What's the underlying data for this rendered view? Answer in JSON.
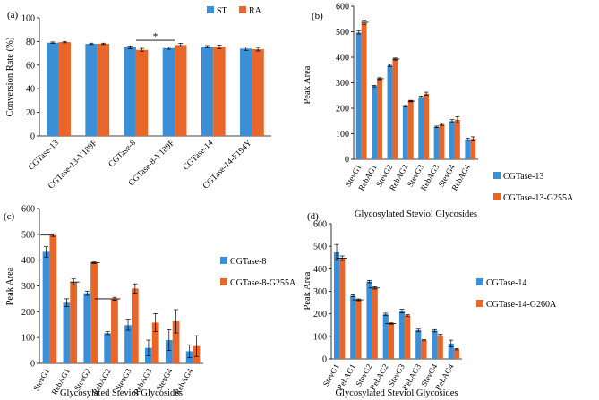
{
  "colors": {
    "blue": "#3A8FD6",
    "orange": "#E8662A"
  },
  "chart_data": [
    {
      "panel_label": "(a)",
      "type": "bar",
      "title": "",
      "xlabel": "",
      "ylabel": "Conversion Rate (%)",
      "ylim": [
        0,
        100
      ],
      "yticks": [
        0,
        20,
        40,
        60,
        80,
        100
      ],
      "categories": [
        "CGTase-13",
        "CGTase-13-Y189F",
        "CGTase-8",
        "CGTase-8-Y189F",
        "CGTase-14",
        "CGTase-14-F194Y"
      ],
      "series": [
        {
          "name": "ST",
          "color": "blue",
          "values": [
            79,
            78,
            75,
            74.5,
            75.5,
            74
          ],
          "errors": [
            0.6,
            0.6,
            1.2,
            1.0,
            1.0,
            1.5
          ]
        },
        {
          "name": "RA",
          "color": "orange",
          "values": [
            79.5,
            78,
            73,
            77,
            75.5,
            73.5
          ],
          "errors": [
            0.6,
            0.6,
            1.2,
            1.5,
            1.5,
            1.5
          ]
        }
      ],
      "legend_position": "top-right",
      "annotations": [
        {
          "text": "*",
          "category_from": 2,
          "category_to": 3,
          "y": 81
        }
      ]
    },
    {
      "panel_label": "(b)",
      "type": "bar",
      "title": "",
      "xlabel": "Glycosylated Steviol Glycosides",
      "ylabel": "Peak Area",
      "ylim": [
        0,
        600
      ],
      "yticks": [
        0,
        100,
        200,
        300,
        400,
        500,
        600
      ],
      "categories": [
        "StevG1",
        "RebAG1",
        "StevG2",
        "RebAG2",
        "StevG3",
        "RebAG3",
        "StevG4",
        "RebAG4"
      ],
      "series": [
        {
          "name": "CGTase-13",
          "color": "blue",
          "values": [
            497,
            287,
            368,
            208,
            244,
            127,
            150,
            78
          ],
          "errors": [
            6,
            3,
            4,
            3,
            4,
            3,
            6,
            4
          ]
        },
        {
          "name": "CGTase-13-G255A",
          "color": "orange",
          "values": [
            537,
            316,
            393,
            228,
            257,
            137,
            155,
            80
          ],
          "errors": [
            8,
            4,
            4,
            3,
            6,
            4,
            12,
            8
          ]
        }
      ],
      "legend_position": "right",
      "reference_lines": [
        {
          "y": 537,
          "category_from": 0,
          "category_to": 0.45
        },
        {
          "y": 316,
          "category_from": 1,
          "category_to": 1.45
        },
        {
          "y": 393,
          "category_from": 2,
          "category_to": 2.45
        },
        {
          "y": 228,
          "category_from": 3,
          "category_to": 3.45
        }
      ]
    },
    {
      "panel_label": "(c)",
      "type": "bar",
      "title": "",
      "xlabel": "Glycosylated Steviol Glycosides",
      "ylabel": "Peak Area",
      "ylim": [
        0,
        600
      ],
      "yticks": [
        0,
        100,
        200,
        300,
        400,
        500,
        600
      ],
      "categories": [
        "StevG1",
        "RebAG1",
        "StevG2",
        "RebAG2",
        "StevG3",
        "RebAG3",
        "StevG4",
        "RebAG4"
      ],
      "series": [
        {
          "name": "CGTase-8",
          "color": "blue",
          "values": [
            432,
            235,
            272,
            117,
            148,
            60,
            90,
            47
          ],
          "errors": [
            20,
            15,
            8,
            6,
            20,
            30,
            40,
            25
          ]
        },
        {
          "name": "CGTase-8-G255A",
          "color": "orange",
          "values": [
            497,
            315,
            390,
            250,
            290,
            158,
            163,
            67
          ],
          "errors": [
            5,
            12,
            3,
            6,
            18,
            35,
            45,
            40
          ]
        }
      ],
      "legend_position": "right",
      "reference_lines": [
        {
          "y": 497,
          "category_from": -0.45,
          "category_to": 0.2
        },
        {
          "y": 315,
          "category_from": 1,
          "category_to": 1.45
        },
        {
          "y": 390,
          "category_from": 2,
          "category_to": 2.45
        },
        {
          "y": 250,
          "category_from": 2.2,
          "category_to": 3.45
        }
      ]
    },
    {
      "panel_label": "(d)",
      "type": "bar",
      "title": "",
      "xlabel": "Glycosylated Steviol Glycosides",
      "ylabel": "Peak Area",
      "ylim": [
        0,
        600
      ],
      "yticks": [
        0,
        100,
        200,
        300,
        400,
        500,
        600
      ],
      "categories": [
        "StevG1",
        "RebAG1",
        "StevG2",
        "RebAG2",
        "StevG3",
        "RebAG3",
        "StevG4",
        "RebAG4"
      ],
      "series": [
        {
          "name": "CGTase-14",
          "color": "blue",
          "values": [
            473,
            280,
            343,
            198,
            212,
            127,
            125,
            68
          ],
          "errors": [
            35,
            4,
            5,
            5,
            8,
            5,
            5,
            15
          ]
        },
        {
          "name": "CGTase-14-G260A",
          "color": "orange",
          "values": [
            447,
            262,
            315,
            157,
            193,
            83,
            105,
            43
          ],
          "errors": [
            10,
            4,
            5,
            3,
            3,
            3,
            4,
            3
          ]
        }
      ],
      "legend_position": "right",
      "reference_lines": [
        {
          "y": 447,
          "category_from": -0.2,
          "category_to": 0.45
        },
        {
          "y": 262,
          "category_from": 0.8,
          "category_to": 1.45
        },
        {
          "y": 315,
          "category_from": 1.8,
          "category_to": 2.45
        },
        {
          "y": 157,
          "category_from": 2.8,
          "category_to": 3.45
        }
      ]
    }
  ]
}
